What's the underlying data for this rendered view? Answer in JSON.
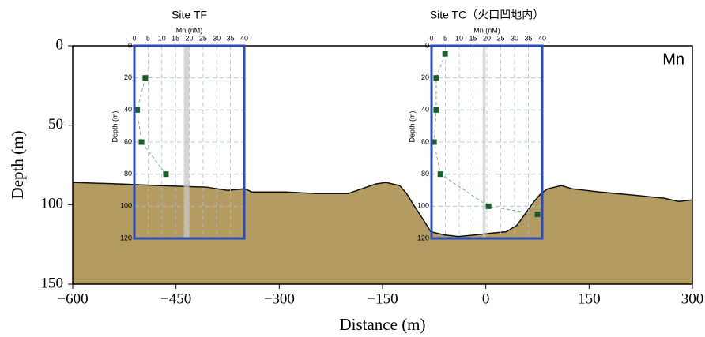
{
  "chart_data": [
    {
      "type": "area",
      "xlabel": "Distance (m)",
      "ylabel": "Depth (m)",
      "annotation": "Mn",
      "x": [
        -600,
        -530,
        -475,
        -405,
        -375,
        -350,
        -340,
        -290,
        -245,
        -200,
        -180,
        -160,
        -145,
        -125,
        -115,
        -105,
        -90,
        -80,
        -60,
        -40,
        -15,
        5,
        30,
        45,
        60,
        70,
        80,
        90,
        110,
        125,
        165,
        215,
        260,
        280,
        300
      ],
      "values": [
        86,
        87,
        88,
        89,
        91,
        90,
        92,
        92,
        93,
        93,
        90,
        87,
        86,
        88,
        93,
        100,
        110,
        117,
        119,
        120,
        119,
        118,
        117,
        113,
        104,
        98,
        93,
        90,
        88,
        90,
        92,
        94,
        96,
        98,
        97
      ],
      "color": "#b39b62",
      "line_color": "#111111",
      "xlim": [
        -600,
        300
      ],
      "xticks": [
        {
          "value": -600,
          "label": "−600"
        },
        {
          "value": -450,
          "label": "−450"
        },
        {
          "value": -300,
          "label": "−300"
        },
        {
          "value": -150,
          "label": "−150"
        },
        0,
        150,
        300
      ],
      "ylim": [
        0,
        150
      ],
      "yticks": [
        0,
        50,
        100,
        150
      ],
      "y_inverted": true
    },
    {
      "type": "scatter",
      "title": "Site TF",
      "xlabel": "Mn (nM)",
      "ylabel": "Depth (m)",
      "x": [
        4,
        1,
        2.6,
        11.5
      ],
      "values": [
        20,
        40,
        60,
        80
      ],
      "color": "#1b5e2c",
      "connect": true,
      "band": [
        18,
        20
      ],
      "xlim": [
        0,
        40
      ],
      "xticks": [
        0,
        5,
        10,
        15,
        20,
        25,
        30,
        35,
        40
      ],
      "ylim": [
        0,
        120
      ],
      "yticks": [
        0,
        20,
        40,
        60,
        80,
        100,
        120
      ],
      "y_inverted": true,
      "grid": true
    },
    {
      "type": "scatter",
      "title": "Site TC（火口凹地内）",
      "xlabel": "Mn (nM)",
      "ylabel": "Depth (m)",
      "x": [
        4.9,
        1.7,
        1.7,
        0.9,
        3.2,
        20.6,
        38.3
      ],
      "values": [
        5,
        20,
        40,
        60,
        80,
        100,
        105
      ],
      "color": "#1b5e2c",
      "connect": true,
      "band": [
        18.5,
        19.5
      ],
      "xlim": [
        0,
        40
      ],
      "xticks": [
        0,
        5,
        10,
        15,
        20,
        25,
        30,
        35,
        40
      ],
      "ylim": [
        0,
        120
      ],
      "yticks": [
        0,
        20,
        40,
        60,
        80,
        100,
        120
      ],
      "y_inverted": true,
      "grid": true
    }
  ]
}
